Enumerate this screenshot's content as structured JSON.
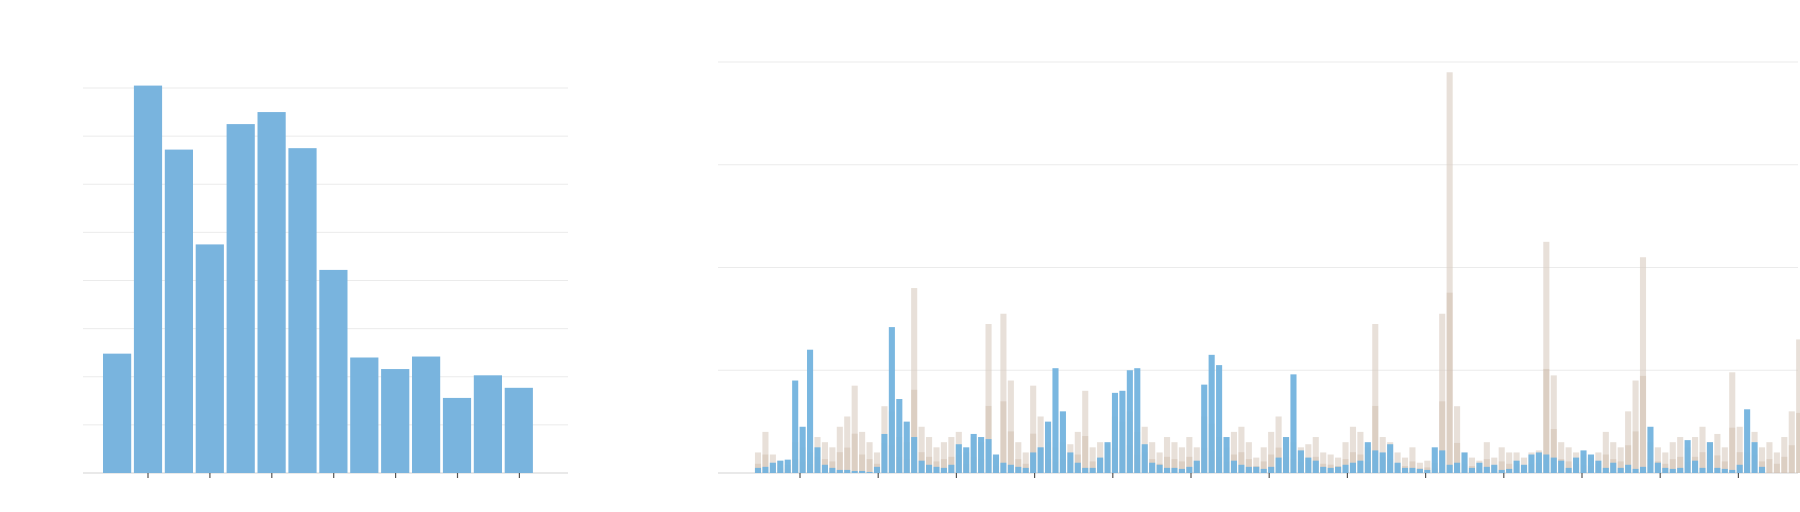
{
  "chart_data": [
    {
      "type": "bar",
      "title": "",
      "xlabel": "",
      "ylabel": "",
      "grid": true,
      "ylim": [
        0,
        8
      ],
      "values": [
        2.48,
        8.05,
        6.72,
        4.75,
        7.25,
        7.5,
        6.75,
        4.22,
        2.4,
        2.16,
        2.42,
        1.56,
        2.03,
        1.77
      ]
    },
    {
      "type": "bar",
      "title": "",
      "xlabel": "",
      "ylabel": "",
      "grid": true,
      "ylim": [
        0,
        4
      ],
      "colors": {
        "primary": "#73b3de",
        "secondary": "#d8cbc0"
      },
      "series": [
        {
          "values": [
            0.05,
            0.06,
            0.1,
            0.12,
            0.13,
            0.9,
            0.45,
            1.2,
            0.25,
            0.08,
            0.05,
            0.03,
            0.03,
            0.02,
            0.02,
            0.01,
            0.06,
            0.38,
            1.42,
            0.72,
            0.5,
            0.35,
            0.12,
            0.08,
            0.06,
            0.05,
            0.08,
            0.28,
            0.25,
            0.38,
            0.35,
            0.33,
            0.18,
            0.1,
            0.08,
            0.06,
            0.05,
            0.2,
            0.25,
            0.5,
            1.02,
            0.6,
            0.2,
            0.1,
            0.05,
            0.05,
            0.15,
            0.3,
            0.78,
            0.8,
            1.0,
            1.02,
            0.28,
            0.1,
            0.08,
            0.05,
            0.05,
            0.04,
            0.06,
            0.12,
            0.86,
            1.15,
            1.05,
            0.35,
            0.12,
            0.08,
            0.06,
            0.06,
            0.04,
            0.06,
            0.15,
            0.35,
            0.96,
            0.22,
            0.15,
            0.12,
            0.06,
            0.05,
            0.06,
            0.08,
            0.1,
            0.12,
            0.3,
            0.22,
            0.2,
            0.28,
            0.1,
            0.05,
            0.05,
            0.04,
            0.03,
            0.25,
            0.22,
            0.08,
            0.1,
            0.2,
            0.05,
            0.1,
            0.06,
            0.08,
            0.03,
            0.04,
            0.12,
            0.08,
            0.18,
            0.2,
            0.18,
            0.15,
            0.12,
            0.05,
            0.15,
            0.22,
            0.18,
            0.12,
            0.05,
            0.1,
            0.05,
            0.08,
            0.04,
            0.06,
            0.45,
            0.1,
            0.05,
            0.04,
            0.05,
            0.32,
            0.12,
            0.05,
            0.3,
            0.05,
            0.04,
            0.03,
            0.08,
            0.62,
            0.3,
            0.06
          ]
        },
        {
          "values": [
            0.2,
            0.4,
            0.18,
            0.12,
            0.08,
            0.3,
            0.25,
            0.2,
            0.35,
            0.3,
            0.25,
            0.45,
            0.55,
            0.85,
            0.4,
            0.3,
            0.2,
            0.65,
            0.6,
            0.35,
            0.3,
            1.8,
            0.45,
            0.35,
            0.25,
            0.3,
            0.35,
            0.4,
            0.2,
            0.35,
            0.3,
            1.45,
            0.15,
            1.55,
            0.9,
            0.3,
            0.2,
            0.85,
            0.55,
            0.3,
            0.25,
            0.3,
            0.28,
            0.4,
            0.8,
            0.25,
            0.3,
            0.28,
            0.55,
            0.5,
            0.6,
            0.4,
            0.45,
            0.3,
            0.2,
            0.35,
            0.3,
            0.25,
            0.35,
            0.25,
            0.55,
            0.48,
            0.35,
            0.25,
            0.4,
            0.45,
            0.3,
            0.15,
            0.25,
            0.4,
            0.55,
            0.35,
            0.3,
            0.25,
            0.28,
            0.35,
            0.2,
            0.18,
            0.15,
            0.3,
            0.45,
            0.4,
            0.25,
            1.45,
            0.35,
            0.3,
            0.2,
            0.15,
            0.25,
            0.1,
            0.12,
            0.1,
            1.55,
            3.9,
            0.65,
            0.2,
            0.15,
            0.12,
            0.3,
            0.15,
            0.25,
            0.2,
            0.2,
            0.15,
            0.2,
            0.22,
            2.25,
            0.95,
            0.3,
            0.25,
            0.2,
            0.18,
            0.15,
            0.2,
            0.4,
            0.3,
            0.25,
            0.6,
            0.9,
            2.1,
            0.3,
            0.25,
            0.2,
            0.3,
            0.35,
            0.25,
            0.35,
            0.45,
            0.3,
            0.38,
            0.25,
            0.98,
            0.45,
            0.2,
            0.4,
            0.25,
            0.3,
            0.2,
            0.35,
            0.6,
            1.3,
            0.5,
            0.45,
            0.15,
            0.12,
            0.05
          ]
        }
      ]
    }
  ]
}
